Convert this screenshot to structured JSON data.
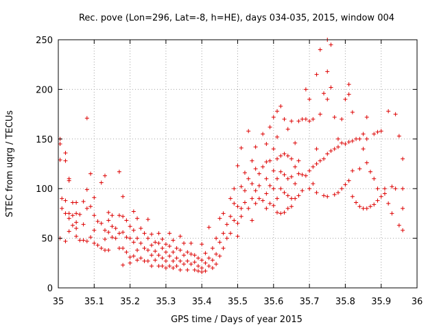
{
  "chart_data": {
    "type": "scatter",
    "title": "Rec. pove (Lon=296, Lat=-8, h=HE), days 034-035, 2015, window 004",
    "xlabel": "GPS time / Days of year 2015",
    "ylabel": "STEC from uqrg / TECUs",
    "xlim": [
      35,
      36
    ],
    "ylim": [
      0,
      250
    ],
    "xticks": [
      35,
      35.1,
      35.2,
      35.3,
      35.4,
      35.5,
      35.6,
      35.7,
      35.8,
      35.9,
      36
    ],
    "yticks": [
      0,
      50,
      100,
      150,
      200,
      250
    ],
    "xtick_labels": [
      "35",
      "35.1",
      "35.2",
      "35.3",
      "35.4",
      "35.5",
      "35.6",
      "35.7",
      "35.8",
      "35.9",
      "36"
    ],
    "ytick_labels": [
      "0",
      "50",
      "100",
      "150",
      "200",
      "250"
    ],
    "grid": true,
    "marker": "plus",
    "color": "#dd0000",
    "points": [
      [
        35.005,
        150
      ],
      [
        35.005,
        145
      ],
      [
        35.005,
        129
      ],
      [
        35.01,
        90
      ],
      [
        35.01,
        80
      ],
      [
        35.005,
        50
      ],
      [
        35.02,
        136
      ],
      [
        35.02,
        128
      ],
      [
        35.02,
        88
      ],
      [
        35.02,
        75
      ],
      [
        35.02,
        47
      ],
      [
        35.03,
        110
      ],
      [
        35.03,
        108
      ],
      [
        35.03,
        75
      ],
      [
        35.03,
        70
      ],
      [
        35.03,
        57
      ],
      [
        35.04,
        86
      ],
      [
        35.04,
        73
      ],
      [
        35.04,
        63
      ],
      [
        35.05,
        86
      ],
      [
        35.05,
        75
      ],
      [
        35.05,
        66
      ],
      [
        35.05,
        60
      ],
      [
        35.05,
        52
      ],
      [
        35.06,
        74
      ],
      [
        35.06,
        48
      ],
      [
        35.07,
        87
      ],
      [
        35.07,
        64
      ],
      [
        35.07,
        48
      ],
      [
        35.08,
        171
      ],
      [
        35.08,
        99
      ],
      [
        35.08,
        80
      ],
      [
        35.08,
        47
      ],
      [
        35.09,
        115
      ],
      [
        35.09,
        82
      ],
      [
        35.09,
        51
      ],
      [
        35.1,
        91
      ],
      [
        35.1,
        73
      ],
      [
        35.1,
        58
      ],
      [
        35.1,
        45
      ],
      [
        35.11,
        67
      ],
      [
        35.11,
        43
      ],
      [
        35.12,
        106
      ],
      [
        35.12,
        65
      ],
      [
        35.12,
        40
      ],
      [
        35.13,
        113
      ],
      [
        35.13,
        58
      ],
      [
        35.13,
        49
      ],
      [
        35.13,
        38
      ],
      [
        35.14,
        76
      ],
      [
        35.14,
        68
      ],
      [
        35.14,
        56
      ],
      [
        35.14,
        38
      ],
      [
        35.15,
        73
      ],
      [
        35.15,
        62
      ],
      [
        35.15,
        51
      ],
      [
        35.16,
        60
      ],
      [
        35.16,
        50
      ],
      [
        35.17,
        117
      ],
      [
        35.17,
        73
      ],
      [
        35.17,
        55
      ],
      [
        35.17,
        40
      ],
      [
        35.18,
        92
      ],
      [
        35.18,
        72
      ],
      [
        35.18,
        56
      ],
      [
        35.18,
        40
      ],
      [
        35.18,
        23
      ],
      [
        35.19,
        68
      ],
      [
        35.19,
        51
      ],
      [
        35.19,
        36
      ],
      [
        35.2,
        62
      ],
      [
        35.2,
        50
      ],
      [
        35.2,
        31
      ],
      [
        35.2,
        25
      ],
      [
        35.21,
        77
      ],
      [
        35.21,
        58
      ],
      [
        35.21,
        46
      ],
      [
        35.21,
        32
      ],
      [
        35.22,
        70
      ],
      [
        35.22,
        50
      ],
      [
        35.22,
        38
      ],
      [
        35.22,
        28
      ],
      [
        35.23,
        60
      ],
      [
        35.23,
        45
      ],
      [
        35.23,
        30
      ],
      [
        35.24,
        55
      ],
      [
        35.24,
        40
      ],
      [
        35.24,
        27
      ],
      [
        35.25,
        69
      ],
      [
        35.25,
        50
      ],
      [
        35.25,
        38
      ],
      [
        35.25,
        27
      ],
      [
        35.26,
        54
      ],
      [
        35.26,
        43
      ],
      [
        35.26,
        33
      ],
      [
        35.26,
        22
      ],
      [
        35.27,
        46
      ],
      [
        35.27,
        37
      ],
      [
        35.27,
        28
      ],
      [
        35.28,
        55
      ],
      [
        35.28,
        45
      ],
      [
        35.28,
        33
      ],
      [
        35.28,
        22
      ],
      [
        35.29,
        49
      ],
      [
        35.29,
        40
      ],
      [
        35.29,
        30
      ],
      [
        35.29,
        22
      ],
      [
        35.3,
        44
      ],
      [
        35.3,
        36
      ],
      [
        35.3,
        27
      ],
      [
        35.3,
        20
      ],
      [
        35.31,
        55
      ],
      [
        35.31,
        42
      ],
      [
        35.31,
        32
      ],
      [
        35.31,
        22
      ],
      [
        35.32,
        48
      ],
      [
        35.32,
        36
      ],
      [
        35.32,
        27
      ],
      [
        35.32,
        20
      ],
      [
        35.33,
        40
      ],
      [
        35.33,
        30
      ],
      [
        35.33,
        22
      ],
      [
        35.34,
        52
      ],
      [
        35.34,
        38
      ],
      [
        35.34,
        27
      ],
      [
        35.34,
        18
      ],
      [
        35.35,
        45
      ],
      [
        35.35,
        33
      ],
      [
        35.35,
        24
      ],
      [
        35.36,
        36
      ],
      [
        35.36,
        27
      ],
      [
        35.36,
        18
      ],
      [
        35.37,
        45
      ],
      [
        35.37,
        34
      ],
      [
        35.37,
        24
      ],
      [
        35.38,
        33
      ],
      [
        35.38,
        26
      ],
      [
        35.38,
        18
      ],
      [
        35.39,
        30
      ],
      [
        35.39,
        22
      ],
      [
        35.39,
        17
      ],
      [
        35.4,
        44
      ],
      [
        35.4,
        28
      ],
      [
        35.4,
        20
      ],
      [
        35.4,
        16
      ],
      [
        35.41,
        35
      ],
      [
        35.41,
        25
      ],
      [
        35.41,
        17
      ],
      [
        35.42,
        61
      ],
      [
        35.42,
        30
      ],
      [
        35.42,
        22
      ],
      [
        35.43,
        40
      ],
      [
        35.43,
        28
      ],
      [
        35.43,
        20
      ],
      [
        35.44,
        50
      ],
      [
        35.44,
        34
      ],
      [
        35.44,
        24
      ],
      [
        35.45,
        70
      ],
      [
        35.45,
        46
      ],
      [
        35.45,
        32
      ],
      [
        35.46,
        75
      ],
      [
        35.46,
        55
      ],
      [
        35.46,
        40
      ],
      [
        35.47,
        64
      ],
      [
        35.47,
        50
      ],
      [
        35.48,
        90
      ],
      [
        35.48,
        72
      ],
      [
        35.48,
        55
      ],
      [
        35.49,
        100
      ],
      [
        35.49,
        85
      ],
      [
        35.49,
        68
      ],
      [
        35.5,
        123
      ],
      [
        35.5,
        82
      ],
      [
        35.5,
        65
      ],
      [
        35.5,
        52
      ],
      [
        35.51,
        141
      ],
      [
        35.51,
        102
      ],
      [
        35.51,
        80
      ],
      [
        35.51,
        72
      ],
      [
        35.52,
        116
      ],
      [
        35.52,
        98
      ],
      [
        35.52,
        86
      ],
      [
        35.53,
        158
      ],
      [
        35.53,
        110
      ],
      [
        35.53,
        80
      ],
      [
        35.54,
        128
      ],
      [
        35.54,
        105
      ],
      [
        35.54,
        90
      ],
      [
        35.54,
        68
      ],
      [
        35.55,
        142
      ],
      [
        35.55,
        120
      ],
      [
        35.55,
        98
      ],
      [
        35.55,
        85
      ],
      [
        35.56,
        115
      ],
      [
        35.56,
        103
      ],
      [
        35.56,
        90
      ],
      [
        35.57,
        155
      ],
      [
        35.57,
        122
      ],
      [
        35.57,
        88
      ],
      [
        35.58,
        145
      ],
      [
        35.58,
        127
      ],
      [
        35.58,
        110
      ],
      [
        35.58,
        95
      ],
      [
        35.58,
        80
      ],
      [
        35.59,
        162
      ],
      [
        35.59,
        128
      ],
      [
        35.59,
        103
      ],
      [
        35.59,
        85
      ],
      [
        35.6,
        172
      ],
      [
        35.6,
        140
      ],
      [
        35.6,
        118
      ],
      [
        35.6,
        100
      ],
      [
        35.6,
        83
      ],
      [
        35.61,
        178
      ],
      [
        35.61,
        152
      ],
      [
        35.61,
        130
      ],
      [
        35.61,
        110
      ],
      [
        35.61,
        90
      ],
      [
        35.61,
        76
      ],
      [
        35.62,
        183
      ],
      [
        35.62,
        133
      ],
      [
        35.62,
        117
      ],
      [
        35.62,
        100
      ],
      [
        35.62,
        75
      ],
      [
        35.63,
        170
      ],
      [
        35.63,
        135
      ],
      [
        35.63,
        114
      ],
      [
        35.63,
        96
      ],
      [
        35.63,
        76
      ],
      [
        35.64,
        160
      ],
      [
        35.64,
        133
      ],
      [
        35.64,
        110
      ],
      [
        35.64,
        93
      ],
      [
        35.64,
        80
      ],
      [
        35.65,
        168
      ],
      [
        35.65,
        130
      ],
      [
        35.65,
        112
      ],
      [
        35.65,
        90
      ],
      [
        35.65,
        82
      ],
      [
        35.66,
        146
      ],
      [
        35.66,
        122
      ],
      [
        35.66,
        105
      ],
      [
        35.66,
        90
      ],
      [
        35.67,
        168
      ],
      [
        35.67,
        128
      ],
      [
        35.67,
        115
      ],
      [
        35.67,
        93
      ],
      [
        35.68,
        170
      ],
      [
        35.68,
        114
      ],
      [
        35.68,
        98
      ],
      [
        35.69,
        200
      ],
      [
        35.69,
        170
      ],
      [
        35.69,
        113
      ],
      [
        35.7,
        190
      ],
      [
        35.7,
        168
      ],
      [
        35.7,
        118
      ],
      [
        35.7,
        100
      ],
      [
        35.71,
        170
      ],
      [
        35.71,
        122
      ],
      [
        35.71,
        105
      ],
      [
        35.72,
        215
      ],
      [
        35.72,
        140
      ],
      [
        35.72,
        125
      ],
      [
        35.72,
        96
      ],
      [
        35.73,
        240
      ],
      [
        35.73,
        175
      ],
      [
        35.73,
        128
      ],
      [
        35.74,
        196
      ],
      [
        35.74,
        130
      ],
      [
        35.74,
        93
      ],
      [
        35.75,
        250
      ],
      [
        35.75,
        218
      ],
      [
        35.75,
        190
      ],
      [
        35.75,
        135
      ],
      [
        35.75,
        92
      ],
      [
        35.76,
        245
      ],
      [
        35.76,
        202
      ],
      [
        35.76,
        138
      ],
      [
        35.77,
        172
      ],
      [
        35.77,
        140
      ],
      [
        35.77,
        94
      ],
      [
        35.78,
        150
      ],
      [
        35.78,
        142
      ],
      [
        35.78,
        96
      ],
      [
        35.79,
        170
      ],
      [
        35.79,
        146
      ],
      [
        35.79,
        100
      ],
      [
        35.8,
        190
      ],
      [
        35.8,
        145
      ],
      [
        35.8,
        104
      ],
      [
        35.81,
        205
      ],
      [
        35.81,
        195
      ],
      [
        35.81,
        147
      ],
      [
        35.81,
        108
      ],
      [
        35.82,
        177
      ],
      [
        35.82,
        148
      ],
      [
        35.82,
        118
      ],
      [
        35.82,
        92
      ],
      [
        35.83,
        150
      ],
      [
        35.83,
        86
      ],
      [
        35.84,
        150
      ],
      [
        35.84,
        120
      ],
      [
        35.84,
        82
      ],
      [
        35.85,
        155
      ],
      [
        35.85,
        140
      ],
      [
        35.85,
        80
      ],
      [
        35.86,
        172
      ],
      [
        35.86,
        150
      ],
      [
        35.86,
        126
      ],
      [
        35.86,
        80
      ],
      [
        35.87,
        117
      ],
      [
        35.87,
        82
      ],
      [
        35.88,
        155
      ],
      [
        35.88,
        110
      ],
      [
        35.88,
        84
      ],
      [
        35.89,
        157
      ],
      [
        35.89,
        100
      ],
      [
        35.89,
        88
      ],
      [
        35.9,
        158
      ],
      [
        35.9,
        92
      ],
      [
        35.91,
        100
      ],
      [
        35.91,
        95
      ],
      [
        35.92,
        178
      ],
      [
        35.92,
        85
      ],
      [
        35.93,
        102
      ],
      [
        35.93,
        75
      ],
      [
        35.94,
        175
      ],
      [
        35.94,
        100
      ],
      [
        35.95,
        153
      ],
      [
        35.95,
        63
      ],
      [
        35.96,
        130
      ],
      [
        35.96,
        100
      ],
      [
        35.96,
        80
      ],
      [
        35.96,
        58
      ]
    ]
  }
}
